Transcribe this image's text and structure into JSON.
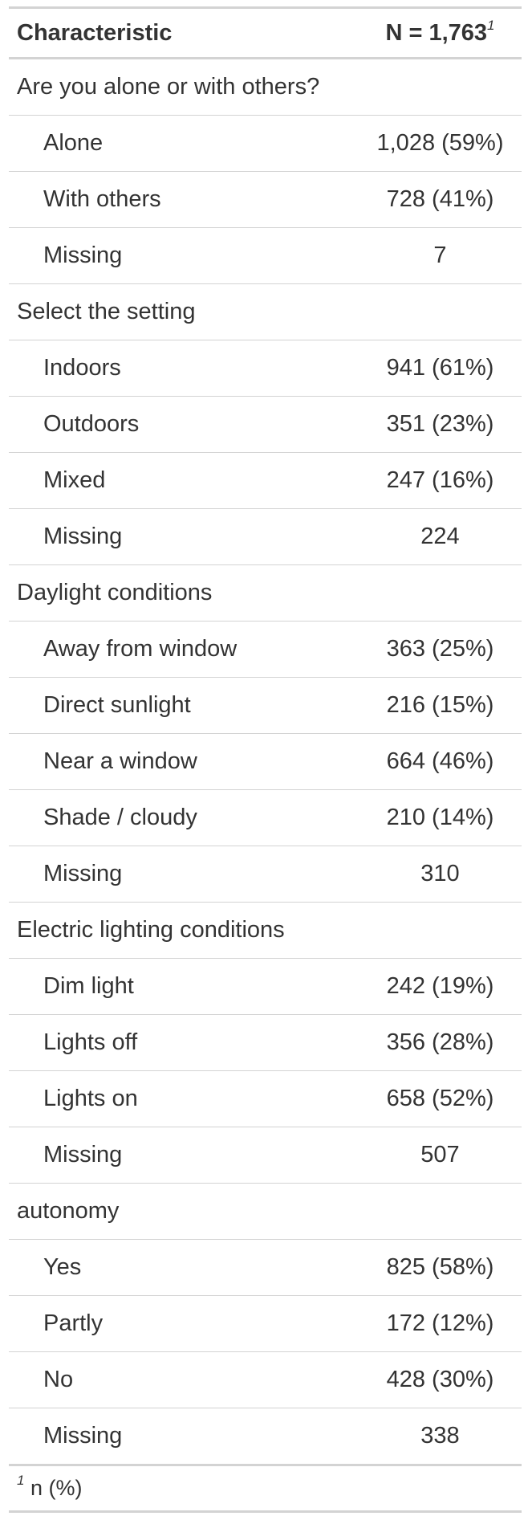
{
  "header": {
    "characteristic": "Characteristic",
    "n_label": "N = 1,763",
    "n_footnote_mark": "1"
  },
  "groups": [
    {
      "label": "Are you alone or with others?",
      "rows": [
        {
          "label": "Alone",
          "value": "1,028 (59%)"
        },
        {
          "label": "With others",
          "value": "728 (41%)"
        },
        {
          "label": "Missing",
          "value": "7"
        }
      ]
    },
    {
      "label": "Select the setting",
      "rows": [
        {
          "label": "Indoors",
          "value": "941 (61%)"
        },
        {
          "label": "Outdoors",
          "value": "351 (23%)"
        },
        {
          "label": "Mixed",
          "value": "247 (16%)"
        },
        {
          "label": "Missing",
          "value": "224"
        }
      ]
    },
    {
      "label": "Daylight conditions",
      "rows": [
        {
          "label": "Away from window",
          "value": "363 (25%)"
        },
        {
          "label": "Direct sunlight",
          "value": "216 (15%)"
        },
        {
          "label": "Near a window",
          "value": "664 (46%)"
        },
        {
          "label": "Shade / cloudy",
          "value": "210 (14%)"
        },
        {
          "label": "Missing",
          "value": "310"
        }
      ]
    },
    {
      "label": "Electric lighting conditions",
      "rows": [
        {
          "label": "Dim light",
          "value": "242 (19%)"
        },
        {
          "label": "Lights off",
          "value": "356 (28%)"
        },
        {
          "label": "Lights on",
          "value": "658 (52%)"
        },
        {
          "label": "Missing",
          "value": "507"
        }
      ]
    },
    {
      "label": "autonomy",
      "rows": [
        {
          "label": "Yes",
          "value": "825 (58%)"
        },
        {
          "label": "Partly",
          "value": "172 (12%)"
        },
        {
          "label": "No",
          "value": "428 (30%)"
        },
        {
          "label": "Missing",
          "value": "338"
        }
      ]
    }
  ],
  "footnote": {
    "mark": "1",
    "text": "n (%)"
  }
}
